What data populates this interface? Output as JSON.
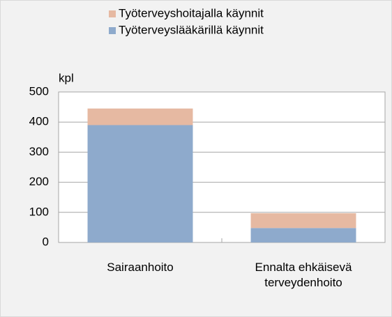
{
  "chart_data": {
    "type": "stacked_bar",
    "y_label": "kpl",
    "categories": [
      "Sairaanhoito",
      "Ennalta ehkäisevä terveydenhoito"
    ],
    "series": [
      {
        "name": "Työterveyslääkärillä käynnit",
        "color": "#8eaacc",
        "values": [
          390,
          48
        ]
      },
      {
        "name": "Työterveyshoitajalla käynnit",
        "color": "#e6b9a2",
        "values": [
          55,
          49
        ]
      }
    ],
    "ylim": [
      0,
      500
    ],
    "yticks": [
      0,
      100,
      200,
      300,
      400,
      500
    ],
    "grid": true,
    "legend": "top"
  }
}
